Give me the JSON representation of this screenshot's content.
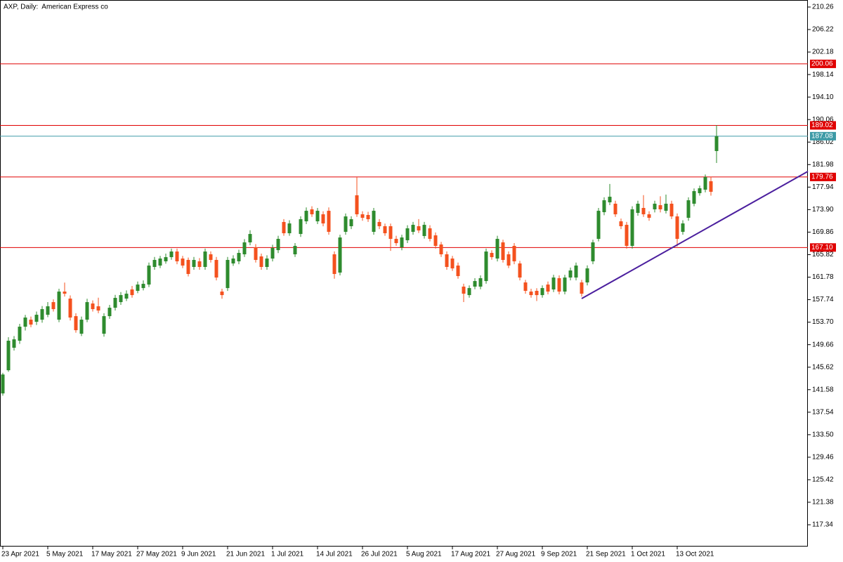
{
  "chart_data": {
    "type": "candlestick",
    "title": "AXP, Daily:  American Express co",
    "categories": [
      "23 Apr 2021",
      null,
      null,
      null,
      null,
      null,
      null,
      null,
      "5 May 2021",
      null,
      null,
      null,
      null,
      null,
      null,
      null,
      "17 May 2021",
      null,
      null,
      null,
      null,
      null,
      null,
      null,
      "27 May 2021",
      null,
      null,
      null,
      null,
      null,
      null,
      null,
      "9 Jun 2021",
      null,
      null,
      null,
      null,
      null,
      null,
      null,
      "21 Jun 2021",
      null,
      null,
      null,
      null,
      null,
      null,
      null,
      "1 Jul 2021",
      null,
      null,
      null,
      null,
      null,
      null,
      null,
      "14 Jul 2021",
      null,
      null,
      null,
      null,
      null,
      null,
      null,
      "26 Jul 2021",
      null,
      null,
      null,
      null,
      null,
      null,
      null,
      "5 Aug 2021",
      null,
      null,
      null,
      null,
      null,
      null,
      null,
      "17 Aug 2021",
      null,
      null,
      null,
      null,
      null,
      null,
      null,
      "27 Aug 2021",
      null,
      null,
      null,
      null,
      null,
      null,
      null,
      "9 Sep 2021",
      null,
      null,
      null,
      null,
      null,
      null,
      null,
      "21 Sep 2021",
      null,
      null,
      null,
      null,
      null,
      null,
      null,
      "1 Oct 2021",
      null,
      null,
      null,
      null,
      null,
      null,
      null,
      "13 Oct 2021",
      null,
      null,
      null,
      null,
      null,
      null,
      null
    ],
    "open": [
      140.91,
      145.07,
      149.11,
      150.37,
      152.89,
      154.15,
      153.77,
      154.15,
      155.03,
      157.3,
      154.15,
      159.19,
      157.93,
      154.78,
      151.63,
      154.15,
      157.05,
      156.55,
      151.63,
      154.78,
      156.29,
      157.3,
      157.93,
      159.57,
      159.32,
      159.82,
      160.45,
      163.61,
      163.86,
      164.62,
      165.37,
      166.38,
      165.12,
      164.87,
      163.61,
      164.62,
      163.61,
      165.88,
      164.87,
      159.19,
      159.82,
      164.24,
      164.62,
      165.88,
      168.02,
      167.14,
      165.5,
      163.61,
      165.12,
      166.63,
      171.68,
      169.66,
      165.88,
      169.53,
      171.8,
      173.95,
      171.8,
      173.06,
      173.69,
      165.88,
      162.6,
      169.91,
      170.92,
      176.47,
      173.06,
      172.94,
      169.91,
      171.68,
      170.92,
      170.92,
      168.65,
      167.14,
      168.4,
      169.91,
      170.92,
      169.16,
      170.54,
      169.28,
      167.64,
      165.88,
      165.12,
      163.86,
      160.08,
      158.56,
      160.08,
      160.08,
      161.08,
      166.13,
      165.12,
      168.02,
      165.88,
      167.39,
      164.24,
      160.83,
      159.19,
      159.32,
      158.56,
      160.45,
      159.57,
      161.59,
      159.19,
      161.71,
      161.71,
      160.83,
      160.83,
      164.62,
      168.65,
      173.44,
      175.21,
      174.96,
      171.8,
      171.17,
      167.39,
      173.31,
      174.2,
      173.06,
      173.95,
      174.7,
      173.69,
      174.96,
      172.68,
      169.91,
      172.43,
      174.96,
      176.85,
      177.48,
      178.99,
      184.41
    ],
    "high": [
      144.6,
      151.0,
      151.2,
      153.4,
      155.0,
      154.7,
      155.6,
      156.6,
      157.3,
      157.8,
      159.7,
      160.8,
      158.5,
      155.3,
      154.7,
      157.9,
      157.6,
      158.1,
      155.3,
      156.8,
      158.6,
      159.1,
      159.4,
      160.2,
      161.0,
      161.2,
      164.4,
      165.4,
      165.6,
      166.0,
      166.9,
      166.9,
      165.6,
      165.3,
      165.4,
      165.2,
      166.9,
      166.4,
      165.4,
      159.7,
      165.4,
      165.7,
      166.7,
      168.6,
      170.2,
      167.7,
      166.0,
      165.7,
      167.6,
      169.2,
      172.2,
      172.0,
      167.9,
      172.7,
      174.3,
      174.5,
      174.2,
      173.6,
      174.3,
      166.4,
      169.4,
      173.2,
      172.7,
      179.75,
      173.6,
      173.5,
      174.2,
      172.2,
      171.4,
      171.4,
      169.2,
      169.4,
      171.1,
      171.7,
      172.2,
      171.7,
      171.1,
      169.8,
      168.1,
      166.4,
      165.6,
      164.4,
      160.6,
      160.3,
      161.6,
      162.1,
      166.9,
      166.6,
      169.2,
      168.5,
      166.4,
      167.9,
      164.7,
      161.3,
      159.7,
      159.8,
      160.3,
      161.0,
      162.2,
      162.1,
      162.2,
      163.5,
      164.4,
      161.3,
      163.9,
      168.5,
      174.2,
      176.1,
      178.5,
      175.5,
      172.3,
      171.7,
      174.5,
      175.5,
      176.5,
      173.6,
      175.5,
      176.3,
      176.6,
      175.5,
      173.2,
      172.0,
      176.1,
      177.7,
      178.2,
      180.2,
      179.8,
      189.08
    ],
    "low": [
      140.5,
      144.8,
      148.6,
      149.8,
      152.2,
      152.8,
      153.2,
      153.6,
      154.6,
      155.6,
      153.7,
      158.3,
      154.0,
      151.8,
      151.2,
      153.7,
      155.6,
      155.3,
      151.1,
      154.3,
      155.8,
      156.8,
      157.5,
      158.1,
      158.9,
      159.4,
      160.0,
      163.1,
      163.4,
      164.2,
      164.9,
      164.1,
      163.4,
      161.9,
      163.1,
      163.1,
      163.1,
      164.4,
      161.2,
      157.9,
      159.3,
      163.8,
      164.1,
      165.4,
      167.5,
      164.4,
      163.1,
      163.1,
      164.6,
      166.1,
      169.2,
      169.2,
      165.4,
      169.0,
      171.3,
      172.6,
      171.3,
      170.9,
      169.4,
      161.5,
      162.1,
      169.4,
      170.4,
      172.6,
      171.9,
      171.7,
      169.4,
      170.4,
      169.2,
      166.5,
      167.4,
      166.6,
      167.9,
      169.4,
      169.7,
      168.7,
      168.2,
      166.9,
      165.4,
      163.1,
      162.9,
      161.5,
      157.3,
      158.1,
      159.6,
      159.6,
      160.6,
      164.9,
      164.6,
      164.4,
      163.4,
      164.1,
      161.2,
      158.8,
      158.1,
      157.5,
      158.1,
      158.7,
      159.1,
      158.7,
      158.7,
      161.2,
      161.2,
      158.3,
      160.3,
      164.1,
      168.2,
      172.9,
      174.7,
      172.6,
      170.4,
      166.9,
      166.9,
      172.8,
      172.6,
      171.9,
      173.4,
      173.4,
      173.2,
      172.2,
      167.3,
      169.4,
      171.9,
      174.5,
      176.4,
      177.0,
      176.4,
      182.27
    ],
    "close": [
      144.31,
      150.37,
      150.62,
      152.89,
      154.53,
      153.27,
      155.03,
      156.04,
      156.55,
      156.04,
      159.19,
      158.81,
      154.53,
      152.26,
      154.15,
      157.3,
      156.04,
      155.79,
      154.78,
      156.29,
      158.06,
      158.56,
      158.81,
      158.56,
      160.45,
      160.58,
      163.86,
      164.87,
      165.12,
      165.37,
      166.38,
      164.62,
      163.86,
      162.35,
      164.87,
      163.61,
      166.38,
      164.87,
      161.71,
      158.56,
      164.87,
      165.12,
      166.13,
      168.02,
      169.53,
      164.87,
      163.61,
      165.12,
      167.01,
      168.65,
      169.66,
      171.42,
      167.39,
      172.18,
      173.69,
      173.06,
      173.69,
      171.42,
      169.91,
      162.35,
      168.9,
      172.68,
      172.18,
      173.06,
      172.43,
      172.18,
      173.69,
      170.92,
      169.66,
      168.65,
      167.89,
      168.9,
      170.54,
      171.17,
      170.16,
      171.17,
      168.65,
      167.39,
      165.88,
      163.61,
      163.35,
      161.97,
      158.81,
      159.82,
      161.08,
      161.59,
      166.38,
      165.37,
      168.65,
      164.87,
      163.86,
      164.62,
      161.71,
      159.32,
      158.56,
      158.56,
      159.82,
      159.19,
      161.71,
      159.19,
      161.71,
      162.98,
      163.86,
      158.81,
      163.35,
      168.02,
      173.69,
      175.58,
      176.21,
      173.06,
      170.92,
      167.39,
      173.95,
      174.96,
      173.06,
      172.43,
      174.96,
      173.95,
      174.96,
      172.68,
      168.65,
      171.42,
      175.58,
      177.22,
      177.73,
      179.75,
      177.1,
      187.08
    ],
    "up_color": "#2e8b2e",
    "down_color": "#f4511e",
    "ylim": [
      113.43,
      211.52
    ],
    "yticks": [
      117.34,
      121.38,
      125.42,
      129.46,
      {
        "value": 133.5,
        "label": "133.50"
      },
      137.54,
      141.58,
      145.62,
      149.66,
      {
        "value": 153.7,
        "label": "153.70"
      },
      157.74,
      161.78,
      165.82,
      169.86,
      {
        "value": 173.9,
        "label": "173.90"
      },
      177.94,
      181.98,
      186.02,
      190.06,
      {
        "value": 194.1,
        "label": "194.10"
      },
      198.14,
      202.18,
      206.22,
      210.26
    ],
    "grid": false,
    "hlines": [
      {
        "value": 200.06,
        "color": "#e00000"
      },
      {
        "value": 189.02,
        "color": "#e00000"
      },
      {
        "value": 187.08,
        "color": "#3d9aa6"
      },
      {
        "value": 179.76,
        "color": "#e00000"
      },
      {
        "value": 167.1,
        "label": "167.10",
        "color": "#e00000"
      }
    ],
    "trendline": {
      "x": [
        103,
        143.25
      ],
      "y": [
        157.93,
        180.76
      ],
      "color": "#4b1f9e"
    }
  }
}
